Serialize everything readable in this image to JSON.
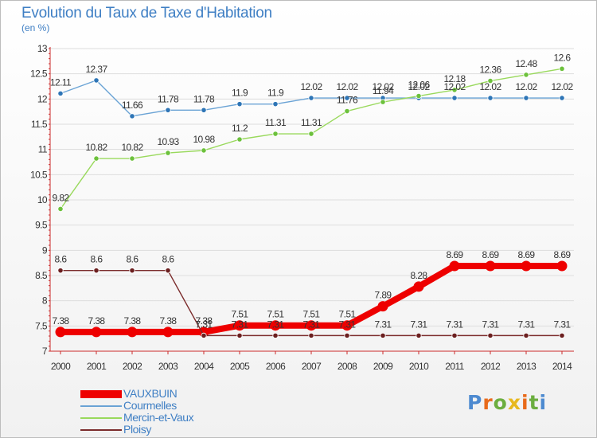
{
  "header": {
    "title": "Evolution du Taux de Taxe d'Habitation",
    "unit": "(en %)"
  },
  "logo": {
    "text": "Proxiti"
  },
  "colors": {
    "accent": "#3f7fc4",
    "axis": "#cc2b2b",
    "grid": "#dddddd"
  },
  "chart_data": {
    "type": "line",
    "title": "Evolution du Taux de Taxe d'Habitation",
    "ylabel": "(en %)",
    "xlabel": "",
    "x": [
      "2000",
      "2001",
      "2002",
      "2003",
      "2004",
      "2005",
      "2006",
      "2007",
      "2008",
      "2009",
      "2010",
      "2011",
      "2012",
      "2013",
      "2014"
    ],
    "ylim": [
      7,
      13
    ],
    "yticks": [
      "7",
      "7.5",
      "8",
      "8.5",
      "9",
      "9.5",
      "10",
      "10.5",
      "11",
      "11.5",
      "12",
      "12.5",
      "13"
    ],
    "grid": "horizontal",
    "legend_position": "bottom-left",
    "series": [
      {
        "name": "VAUXBUIN",
        "color": "#ee0000",
        "marker": "#ee0000",
        "style": "thick",
        "values": [
          7.38,
          7.38,
          7.38,
          7.38,
          7.38,
          7.51,
          7.51,
          7.51,
          7.51,
          7.89,
          8.28,
          8.69,
          8.69,
          8.69,
          8.69
        ],
        "labels": [
          "7.38",
          "7.38",
          "7.38",
          "7.38",
          "7.38",
          "7.51",
          "7.51",
          "7.51",
          "7.51",
          "7.89",
          "8.28",
          "8.69",
          "8.69",
          "8.69",
          "8.69"
        ]
      },
      {
        "name": "Courmelles",
        "color": "#6aa3d5",
        "marker": "#2e75b6",
        "style": "thin",
        "values": [
          12.11,
          12.37,
          11.66,
          11.78,
          11.78,
          11.9,
          11.9,
          12.02,
          12.02,
          12.02,
          12.02,
          12.02,
          12.02,
          12.02,
          12.02
        ],
        "labels": [
          "12.11",
          "12.37",
          "11.66",
          "11.78",
          "11.78",
          "11.9",
          "11.9",
          "12.02",
          "12.02",
          "12.02",
          "12.02",
          "12.02",
          "12.02",
          "12.02",
          "12.02"
        ]
      },
      {
        "name": "Mercin-et-Vaux",
        "color": "#99d95c",
        "marker": "#6cc13c",
        "style": "thin",
        "values": [
          9.82,
          10.82,
          10.82,
          10.93,
          10.98,
          11.2,
          11.31,
          11.31,
          11.76,
          11.94,
          12.06,
          12.18,
          12.36,
          12.48,
          12.6
        ],
        "labels": [
          "9.82",
          "10.82",
          "10.82",
          "10.93",
          "10.98",
          "11.2",
          "11.31",
          "11.31",
          "11.76",
          "11.94",
          "12.06",
          "12.18",
          "12.36",
          "12.48",
          "12.6"
        ]
      },
      {
        "name": "Ploisy",
        "color": "#7b2c2c",
        "marker": "#6b1f1f",
        "style": "thin",
        "values": [
          8.6,
          8.6,
          8.6,
          8.6,
          7.31,
          7.31,
          7.31,
          7.31,
          7.31,
          7.31,
          7.31,
          7.31,
          7.31,
          7.31,
          7.31
        ],
        "labels": [
          "8.6",
          "8.6",
          "8.6",
          "8.6",
          "7.31",
          "7.31",
          "7.31",
          "7.31",
          "7.31",
          "7.31",
          "7.31",
          "7.31",
          "7.31",
          "7.31",
          "7.31"
        ]
      }
    ]
  }
}
